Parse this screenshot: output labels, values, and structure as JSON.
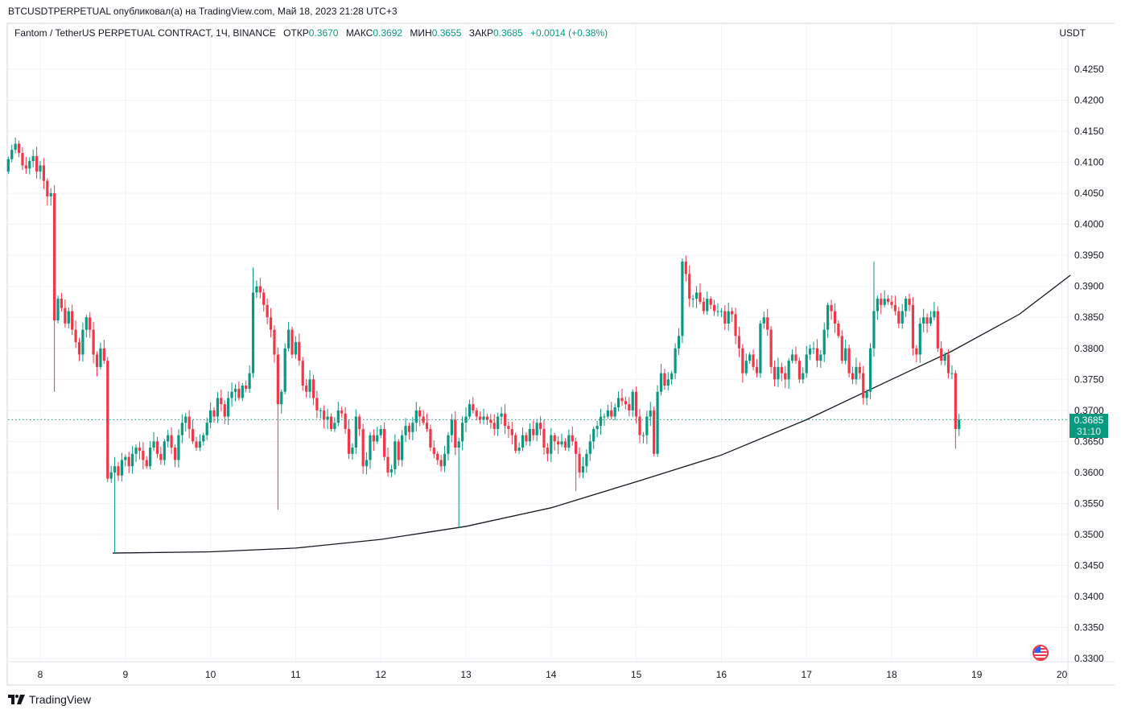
{
  "publication": "BTCUSDTPERPETUAL опубликовал(а) на TradingView.com, Май 18, 2023 21:28 UTC+3",
  "legend": {
    "symbol": "Fantom / TetherUS PERPETUAL CONTRACT, 1Ч, BINANCE",
    "open_label": "ОТКР",
    "open": "0.3670",
    "high_label": "МАКС",
    "high": "0.3692",
    "low_label": "МИН",
    "low": "0.3655",
    "close_label": "ЗАКР",
    "close": "0.3685",
    "change": "+0.0014 (+0.38%)"
  },
  "currency": "USDT",
  "price_label": {
    "price": "0.3685",
    "countdown": "31:10"
  },
  "brand": "TradingView",
  "colors": {
    "up": "#089981",
    "down": "#f23645",
    "grid": "#f0f3fa",
    "curve": "#131722"
  },
  "chart_data": {
    "type": "candlestick",
    "title": "Fantom / TetherUS PERPETUAL CONTRACT, 1Ч, BINANCE",
    "interval": "1h",
    "first_candle_day": 7.625,
    "ylim": [
      0.33,
      0.425
    ],
    "xlim_days": [
      7.62,
      20.06
    ],
    "y_ticks": [
      "0.4250",
      "0.4200",
      "0.4150",
      "0.4100",
      "0.4050",
      "0.4000",
      "0.3950",
      "0.3900",
      "0.3850",
      "0.3800",
      "0.3750",
      "0.3700",
      "0.3650",
      "0.3600",
      "0.3550",
      "0.3500",
      "0.3450",
      "0.3400",
      "0.3350",
      "0.3300"
    ],
    "x_ticks": [
      "8",
      "9",
      "10",
      "11",
      "12",
      "13",
      "14",
      "15",
      "16",
      "17",
      "18",
      "19",
      "20"
    ],
    "start_open": 0.4085,
    "closes": [
      0.4105,
      0.412,
      0.413,
      0.4115,
      0.4095,
      0.409,
      0.4102,
      0.411,
      0.4085,
      0.4095,
      0.407,
      0.4045,
      0.405,
      0.3845,
      0.388,
      0.3865,
      0.384,
      0.386,
      0.383,
      0.381,
      0.379,
      0.383,
      0.385,
      0.383,
      0.379,
      0.377,
      0.38,
      0.378,
      0.359,
      0.36,
      0.361,
      0.3595,
      0.362,
      0.3625,
      0.361,
      0.363,
      0.364,
      0.3635,
      0.362,
      0.361,
      0.364,
      0.365,
      0.363,
      0.362,
      0.365,
      0.366,
      0.364,
      0.362,
      0.366,
      0.368,
      0.369,
      0.367,
      0.365,
      0.364,
      0.365,
      0.366,
      0.368,
      0.37,
      0.369,
      0.372,
      0.371,
      0.369,
      0.372,
      0.373,
      0.3735,
      0.372,
      0.374,
      0.3735,
      0.376,
      0.389,
      0.39,
      0.389,
      0.387,
      0.385,
      0.383,
      0.379,
      0.371,
      0.373,
      0.38,
      0.383,
      0.379,
      0.381,
      0.378,
      0.374,
      0.373,
      0.375,
      0.372,
      0.37,
      0.37,
      0.3685,
      0.369,
      0.367,
      0.368,
      0.37,
      0.3695,
      0.367,
      0.363,
      0.364,
      0.369,
      0.367,
      0.361,
      0.362,
      0.366,
      0.365,
      0.366,
      0.367,
      0.3625,
      0.36,
      0.3605,
      0.365,
      0.362,
      0.366,
      0.3675,
      0.3665,
      0.368,
      0.37,
      0.369,
      0.368,
      0.367,
      0.364,
      0.363,
      0.362,
      0.361,
      0.363,
      0.366,
      0.3685,
      0.364,
      0.365,
      0.368,
      0.369,
      0.371,
      0.37,
      0.369,
      0.3685,
      0.369,
      0.3685,
      0.368,
      0.367,
      0.369,
      0.3695,
      0.3675,
      0.367,
      0.366,
      0.3635,
      0.364,
      0.366,
      0.365,
      0.367,
      0.366,
      0.368,
      0.367,
      0.364,
      0.363,
      0.366,
      0.365,
      0.3645,
      0.365,
      0.364,
      0.366,
      0.365,
      0.363,
      0.36,
      0.361,
      0.363,
      0.365,
      0.367,
      0.3675,
      0.369,
      0.369,
      0.37,
      0.369,
      0.3705,
      0.372,
      0.3715,
      0.371,
      0.37,
      0.373,
      0.369,
      0.366,
      0.366,
      0.369,
      0.37,
      0.363,
      0.373,
      0.376,
      0.374,
      0.375,
      0.376,
      0.38,
      0.382,
      0.394,
      0.392,
      0.388,
      0.388,
      0.389,
      0.3875,
      0.386,
      0.388,
      0.387,
      0.386,
      0.386,
      0.386,
      0.384,
      0.386,
      0.3855,
      0.382,
      0.38,
      0.376,
      0.378,
      0.379,
      0.377,
      0.376,
      0.384,
      0.385,
      0.383,
      0.377,
      0.375,
      0.377,
      0.376,
      0.375,
      0.378,
      0.379,
      0.378,
      0.375,
      0.376,
      0.379,
      0.38,
      0.38,
      0.378,
      0.379,
      0.383,
      0.387,
      0.386,
      0.384,
      0.382,
      0.378,
      0.38,
      0.376,
      0.375,
      0.377,
      0.376,
      0.372,
      0.373,
      0.38,
      0.386,
      0.388,
      0.387,
      0.388,
      0.3875,
      0.387,
      0.386,
      0.384,
      0.386,
      0.388,
      0.387,
      0.38,
      0.379,
      0.384,
      0.385,
      0.384,
      0.385,
      0.386,
      0.38,
      0.378,
      0.379,
      0.376,
      0.376,
      0.367,
      0.3685
    ],
    "notable_wicks": [
      {
        "index": 2,
        "high": 0.414
      },
      {
        "index": 13,
        "low": 0.373
      },
      {
        "index": 30,
        "low": 0.347
      },
      {
        "index": 69,
        "high": 0.393
      },
      {
        "index": 76,
        "low": 0.354
      },
      {
        "index": 127,
        "low": 0.351
      },
      {
        "index": 160,
        "low": 0.357
      },
      {
        "index": 190,
        "high": 0.3945
      },
      {
        "index": 244,
        "high": 0.394
      },
      {
        "index": 267,
        "low": 0.3638
      }
    ],
    "last_price": 0.3685,
    "curve_annotation": [
      [
        8.85,
        0.347
      ],
      [
        10,
        0.3472
      ],
      [
        11,
        0.3478
      ],
      [
        12,
        0.3492
      ],
      [
        13,
        0.3513
      ],
      [
        14,
        0.3543
      ],
      [
        15,
        0.3585
      ],
      [
        16,
        0.3628
      ],
      [
        17,
        0.3685
      ],
      [
        18,
        0.375
      ],
      [
        18.7,
        0.3795
      ],
      [
        19.5,
        0.3855
      ],
      [
        20.1,
        0.3918
      ]
    ]
  }
}
